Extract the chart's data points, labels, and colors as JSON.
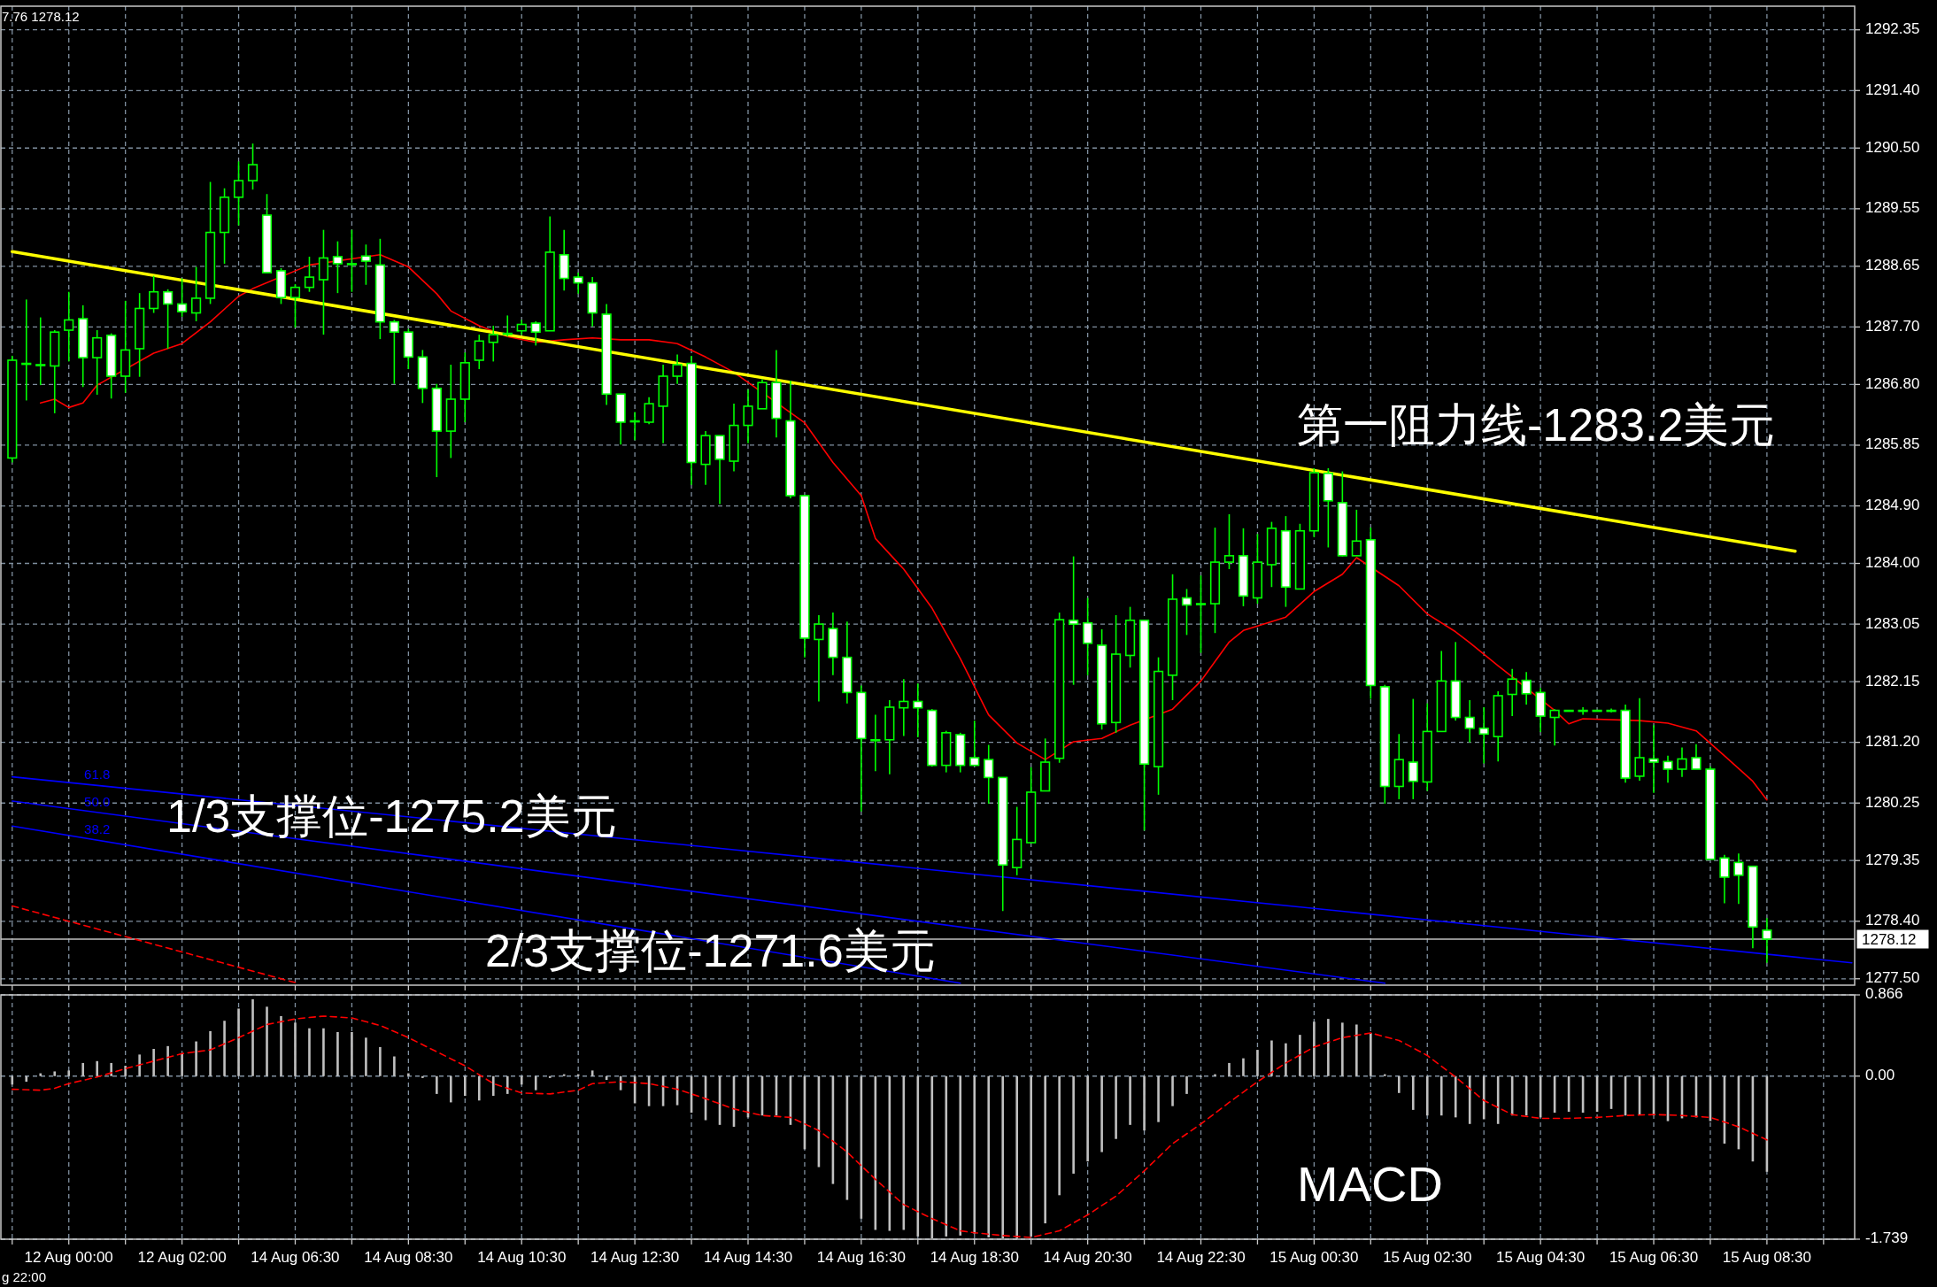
{
  "chart_data": [
    {
      "type": "candlestick",
      "color": "#00ff00",
      "categories": [
        null,
        null,
        null,
        null,
        null,
        null,
        null,
        null,
        null,
        null,
        null,
        null,
        null,
        null,
        null,
        null,
        null,
        null,
        null,
        null,
        null,
        null,
        null,
        null,
        null,
        null,
        null,
        null,
        null,
        null,
        null,
        null,
        null,
        null,
        null,
        null,
        null,
        null,
        null,
        null,
        null,
        null,
        null,
        null,
        null,
        null,
        null,
        null,
        null,
        null,
        null,
        null,
        null,
        null,
        null,
        null,
        null,
        null,
        null,
        null,
        null,
        null,
        null,
        null,
        null,
        null,
        null,
        null,
        null,
        null,
        null,
        null,
        null,
        null,
        null,
        null,
        null,
        null,
        null,
        null,
        null,
        null,
        null,
        null,
        null,
        null,
        null,
        null,
        null,
        null,
        null,
        null,
        null,
        null,
        null,
        null,
        null,
        null,
        null,
        null,
        null,
        null,
        null,
        null,
        null,
        null,
        null,
        null,
        null,
        null,
        null,
        null,
        null,
        null,
        null,
        null,
        null,
        null,
        null,
        null,
        null,
        null,
        null,
        null,
        null,
        null,
        null,
        null,
        null,
        null,
        null
      ],
      "ohlc": [
        [
          1285.65,
          1287.25,
          1285.58,
          1287.18
        ],
        [
          1287.13,
          1288.13,
          1286.55,
          1287.13
        ],
        [
          1287.11,
          1287.85,
          1286.79,
          1287.11
        ],
        [
          1287.09,
          1287.65,
          1286.35,
          1287.62
        ],
        [
          1287.65,
          1288.25,
          1287.16,
          1287.81
        ],
        [
          1287.83,
          1288.04,
          1286.76,
          1287.22
        ],
        [
          1287.22,
          1287.65,
          1286.64,
          1287.53
        ],
        [
          1287.57,
          1287.6,
          1286.58,
          1286.93
        ],
        [
          1286.93,
          1288.11,
          1286.67,
          1287.34
        ],
        [
          1287.36,
          1288.23,
          1286.92,
          1287.99
        ],
        [
          1287.99,
          1288.5,
          1287.92,
          1288.25
        ],
        [
          1288.25,
          1288.29,
          1287.36,
          1288.06
        ],
        [
          1288.06,
          1288.46,
          1287.86,
          1287.94
        ],
        [
          1287.92,
          1288.64,
          1287.79,
          1288.15
        ],
        [
          1288.15,
          1289.97,
          1288.06,
          1289.18
        ],
        [
          1289.18,
          1289.87,
          1288.69,
          1289.73
        ],
        [
          1289.73,
          1290.29,
          1289.29,
          1289.99
        ],
        [
          1289.99,
          1290.57,
          1289.85,
          1290.24
        ],
        [
          1289.45,
          1289.78,
          1288.55,
          1288.55
        ],
        [
          1288.58,
          1288.62,
          1288.06,
          1288.16
        ],
        [
          1288.16,
          1288.37,
          1287.69,
          1288.32
        ],
        [
          1288.32,
          1288.8,
          1288.25,
          1288.48
        ],
        [
          1288.44,
          1289.22,
          1287.58,
          1288.78
        ],
        [
          1288.8,
          1289.04,
          1288.23,
          1288.69
        ],
        [
          1288.69,
          1289.22,
          1288.25,
          1288.69
        ],
        [
          1288.81,
          1288.99,
          1288.36,
          1288.73
        ],
        [
          1288.67,
          1289.08,
          1287.51,
          1287.78
        ],
        [
          1287.78,
          1287.81,
          1286.81,
          1287.62
        ],
        [
          1287.62,
          1287.67,
          1287.04,
          1287.23
        ],
        [
          1287.23,
          1287.34,
          1286.51,
          1286.74
        ],
        [
          1286.74,
          1286.81,
          1285.35,
          1286.07
        ],
        [
          1286.07,
          1287.11,
          1285.65,
          1286.57
        ],
        [
          1286.57,
          1287.3,
          1286.21,
          1287.14
        ],
        [
          1287.18,
          1287.58,
          1287.04,
          1287.48
        ],
        [
          1287.46,
          1287.72,
          1287.16,
          1287.58
        ],
        [
          1287.6,
          1287.88,
          1287.55,
          1287.6
        ],
        [
          1287.64,
          1287.81,
          1287.58,
          1287.74
        ],
        [
          1287.76,
          1287.79,
          1287.41,
          1287.62
        ],
        [
          1287.64,
          1289.43,
          1287.64,
          1288.87
        ],
        [
          1288.83,
          1289.22,
          1288.27,
          1288.46
        ],
        [
          1288.48,
          1288.55,
          1288.22,
          1288.39
        ],
        [
          1288.39,
          1288.48,
          1287.71,
          1287.92
        ],
        [
          1287.9,
          1288.06,
          1286.48,
          1286.65
        ],
        [
          1286.65,
          1286.65,
          1285.86,
          1286.21
        ],
        [
          1286.23,
          1286.37,
          1285.93,
          1286.23
        ],
        [
          1286.21,
          1286.6,
          1286.18,
          1286.5
        ],
        [
          1286.46,
          1287.11,
          1285.88,
          1286.93
        ],
        [
          1286.93,
          1287.27,
          1286.81,
          1287.11
        ],
        [
          1287.13,
          1287.25,
          1285.23,
          1285.58
        ],
        [
          1285.55,
          1286.07,
          1285.23,
          1286.0
        ],
        [
          1286.0,
          1286.0,
          1284.93,
          1285.63
        ],
        [
          1285.6,
          1286.5,
          1285.44,
          1286.16
        ],
        [
          1286.16,
          1286.72,
          1285.88,
          1286.46
        ],
        [
          1286.42,
          1286.88,
          1286.42,
          1286.83
        ],
        [
          1286.83,
          1287.34,
          1285.97,
          1286.27
        ],
        [
          1286.23,
          1286.86,
          1285.02,
          1285.06
        ],
        [
          1285.06,
          1285.06,
          1282.53,
          1282.83
        ],
        [
          1282.81,
          1283.19,
          1281.84,
          1283.05
        ],
        [
          1282.98,
          1283.23,
          1282.25,
          1282.53
        ],
        [
          1282.53,
          1283.09,
          1281.81,
          1281.98
        ],
        [
          1281.98,
          1282.09,
          1280.12,
          1281.26
        ],
        [
          1281.24,
          1281.63,
          1280.75,
          1281.24
        ],
        [
          1281.24,
          1281.86,
          1280.7,
          1281.75
        ],
        [
          1281.74,
          1282.19,
          1281.3,
          1281.84
        ],
        [
          1281.84,
          1282.12,
          1281.28,
          1281.74
        ],
        [
          1281.7,
          1281.72,
          1280.82,
          1280.84
        ],
        [
          1280.84,
          1281.38,
          1280.73,
          1281.35
        ],
        [
          1281.32,
          1281.35,
          1280.73,
          1280.84
        ],
        [
          1280.96,
          1281.54,
          1280.84,
          1280.84
        ],
        [
          1280.93,
          1281.16,
          1280.24,
          1280.65
        ],
        [
          1280.65,
          1280.65,
          1278.56,
          1279.28
        ],
        [
          1279.24,
          1280.19,
          1279.12,
          1279.68
        ],
        [
          1279.63,
          1280.81,
          1279.63,
          1280.42
        ],
        [
          1280.44,
          1281.26,
          1280.44,
          1280.89
        ],
        [
          1280.95,
          1283.23,
          1280.88,
          1283.12
        ],
        [
          1283.11,
          1284.11,
          1282.1,
          1283.05
        ],
        [
          1283.07,
          1283.46,
          1282.25,
          1282.75
        ],
        [
          1282.72,
          1282.97,
          1281.4,
          1281.49
        ],
        [
          1281.51,
          1283.19,
          1281.35,
          1282.58
        ],
        [
          1282.56,
          1283.32,
          1282.37,
          1283.11
        ],
        [
          1283.11,
          1283.12,
          1279.82,
          1280.86
        ],
        [
          1280.82,
          1282.53,
          1280.38,
          1282.31
        ],
        [
          1282.25,
          1283.83,
          1281.86,
          1283.44
        ],
        [
          1283.46,
          1283.6,
          1282.88,
          1283.35
        ],
        [
          1283.37,
          1283.81,
          1282.6,
          1283.37
        ],
        [
          1283.37,
          1284.56,
          1282.91,
          1284.02
        ],
        [
          1284.02,
          1284.77,
          1283.91,
          1284.12
        ],
        [
          1284.12,
          1284.55,
          1283.33,
          1283.49
        ],
        [
          1283.46,
          1284.46,
          1283.37,
          1284.02
        ],
        [
          1283.98,
          1284.65,
          1283.63,
          1284.55
        ],
        [
          1284.51,
          1284.74,
          1283.32,
          1283.63
        ],
        [
          1283.6,
          1284.62,
          1283.6,
          1284.51
        ],
        [
          1284.51,
          1285.49,
          1284.41,
          1285.42
        ],
        [
          1285.41,
          1285.49,
          1284.25,
          1284.98
        ],
        [
          1284.95,
          1285.44,
          1284.11,
          1284.12
        ],
        [
          1284.12,
          1284.84,
          1284.12,
          1284.35
        ],
        [
          1284.37,
          1284.56,
          1281.88,
          1282.09
        ],
        [
          1282.07,
          1282.1,
          1280.24,
          1280.51
        ],
        [
          1280.51,
          1281.33,
          1280.31,
          1280.93
        ],
        [
          1280.89,
          1281.88,
          1280.31,
          1280.59
        ],
        [
          1280.58,
          1281.81,
          1280.44,
          1281.37
        ],
        [
          1281.37,
          1282.63,
          1281.37,
          1282.16
        ],
        [
          1282.16,
          1282.77,
          1281.54,
          1281.59
        ],
        [
          1281.59,
          1281.86,
          1281.2,
          1281.42
        ],
        [
          1281.42,
          1281.75,
          1280.87,
          1281.33
        ],
        [
          1281.29,
          1282.0,
          1280.9,
          1281.93
        ],
        [
          1281.95,
          1282.35,
          1281.61,
          1282.19
        ],
        [
          1282.17,
          1282.3,
          1281.79,
          1281.96
        ],
        [
          1281.98,
          1282.05,
          1281.36,
          1281.61
        ],
        [
          1281.59,
          1281.72,
          1281.15,
          1281.7
        ],
        [
          1281.7,
          1281.7,
          1281.7,
          1281.7
        ],
        [
          1281.7,
          1281.75,
          1281.63,
          1281.7
        ],
        [
          1281.7,
          1281.7,
          1281.7,
          1281.7
        ],
        [
          1281.7,
          1281.73,
          1281.67,
          1281.7
        ],
        [
          1281.7,
          1281.79,
          1280.57,
          1280.64
        ],
        [
          1280.67,
          1281.89,
          1280.6,
          1280.96
        ],
        [
          1280.94,
          1281.47,
          1280.41,
          1280.89
        ],
        [
          1280.9,
          1280.99,
          1280.57,
          1280.78
        ],
        [
          1280.78,
          1281.12,
          1280.66,
          1280.94
        ],
        [
          1280.96,
          1281.17,
          1280.78,
          1280.78
        ],
        [
          1280.78,
          1280.82,
          1279.37,
          1279.37
        ],
        [
          1279.39,
          1279.44,
          1278.68,
          1279.09
        ],
        [
          1279.32,
          1279.46,
          1278.67,
          1279.12
        ],
        [
          1279.26,
          1279.26,
          1277.98,
          1278.31
        ],
        [
          1278.26,
          1278.45,
          1277.75,
          1278.12
        ],
        null,
        null,
        null,
        null,
        null,
        null
      ],
      "series": [
        {
          "type": "line",
          "color": "#ff0000",
          "values": [
            null,
            null,
            1286.51,
            1286.57,
            1286.44,
            1286.51,
            1286.79,
            null,
            null,
            null,
            1287.29,
            null,
            1287.44,
            null,
            1287.78,
            null,
            1288.18,
            1288.3,
            null,
            null,
            null,
            1288.67,
            null,
            null,
            null,
            null,
            1288.83,
            null,
            1288.64,
            null,
            1288.22,
            1287.95,
            null,
            1287.72,
            null,
            1287.55,
            null,
            1287.46,
            null,
            1287.5,
            null,
            1287.53,
            null,
            1287.5,
            null,
            1287.5,
            null,
            1287.44,
            null,
            1287.23,
            null,
            1286.99,
            null,
            null,
            null,
            null,
            1286.2,
            null,
            1285.58,
            null,
            1285.06,
            1284.39,
            null,
            1283.91,
            null,
            1283.3,
            null,
            1282.51,
            null,
            1281.63,
            null,
            1281.19,
            null,
            1280.93,
            null,
            1281.21,
            null,
            1281.26,
            null,
            1281.47,
            null,
            null,
            1281.72,
            null,
            1282.16,
            null,
            1282.77,
            1282.95,
            null,
            1283.09,
            1283.16,
            null,
            1283.56,
            null,
            1283.83,
            1284.09,
            null,
            null,
            1283.65,
            null,
            1283.21,
            null,
            1282.93,
            1282.76,
            null,
            1282.4,
            null,
            null,
            null,
            1281.7,
            1281.49,
            1281.57,
            null,
            null,
            null,
            1281.54,
            null,
            1281.5,
            null,
            1281.38,
            null,
            1280.99,
            null,
            1280.59,
            1280.3,
            null,
            null,
            null,
            null,
            null,
            null
          ]
        },
        {
          "type": "line",
          "color": "#ffff00",
          "values": [
            1288.88,
            null,
            null,
            null,
            null,
            null,
            null,
            null,
            null,
            null,
            null,
            null,
            null,
            null,
            null,
            null,
            null,
            null,
            null,
            null,
            null,
            null,
            null,
            null,
            null,
            null,
            null,
            null,
            null,
            null,
            null,
            null,
            null,
            null,
            null,
            null,
            null,
            null,
            null,
            null,
            null,
            null,
            null,
            null,
            null,
            null,
            null,
            null,
            null,
            null,
            null,
            null,
            null,
            null,
            null,
            null,
            null,
            null,
            null,
            null,
            null,
            null,
            null,
            null,
            null,
            null,
            null,
            null,
            null,
            null,
            null,
            null,
            null,
            null,
            null,
            null,
            null,
            null,
            null,
            null,
            null,
            null,
            null,
            null,
            null,
            null,
            null,
            null,
            null,
            null,
            null,
            null,
            null,
            null,
            null,
            null,
            null,
            null,
            null,
            null,
            null,
            null,
            null,
            null,
            null,
            null,
            null,
            null,
            null,
            null,
            null,
            null,
            null,
            null,
            null,
            null,
            null,
            null,
            null,
            null,
            null,
            null,
            null,
            null,
            null,
            null,
            1284.19,
            null,
            null,
            null,
            null
          ]
        },
        {
          "type": "line",
          "name": "61.8",
          "color": "#0000ff",
          "values": [
            1280.66,
            null,
            null,
            null,
            null,
            null,
            null,
            null,
            null,
            null,
            null,
            null,
            null,
            null,
            null,
            null,
            null,
            null,
            null,
            null,
            null,
            null,
            null,
            null,
            null,
            null,
            null,
            null,
            null,
            null,
            null,
            null,
            null,
            null,
            null,
            null,
            null,
            null,
            null,
            null,
            null,
            null,
            null,
            null,
            null,
            null,
            null,
            null,
            null,
            null,
            null,
            null,
            null,
            null,
            null,
            null,
            null,
            null,
            null,
            null,
            null,
            null,
            null,
            null,
            null,
            null,
            null,
            null,
            null,
            null,
            null,
            null,
            null,
            null,
            null,
            null,
            null,
            null,
            null,
            null,
            null,
            null,
            null,
            null,
            null,
            null,
            null,
            null,
            null,
            null,
            null,
            null,
            null,
            null,
            null,
            null,
            null,
            null,
            null,
            null,
            null,
            null,
            null,
            null,
            null,
            null,
            null,
            null,
            null,
            null,
            null,
            null,
            null,
            null,
            null,
            null,
            null,
            null,
            null,
            null,
            null,
            null,
            null,
            null,
            null,
            null,
            null,
            null,
            null,
            null,
            1277.75
          ]
        },
        {
          "type": "line",
          "name": "50.0",
          "color": "#0000ff",
          "values": [
            1280.28,
            null,
            null,
            null,
            null,
            null,
            null,
            null,
            null,
            null,
            null,
            null,
            null,
            null,
            null,
            null,
            null,
            null,
            null,
            null,
            null,
            null,
            null,
            null,
            null,
            null,
            null,
            null,
            null,
            null,
            null,
            null,
            null,
            null,
            null,
            null,
            null,
            null,
            null,
            null,
            null,
            null,
            null,
            null,
            null,
            null,
            null,
            null,
            null,
            null,
            null,
            null,
            null,
            null,
            null,
            null,
            null,
            null,
            null,
            null,
            null,
            null,
            null,
            null,
            null,
            null,
            null,
            null,
            null,
            null,
            null,
            null,
            null,
            null,
            null,
            null,
            null,
            null,
            null,
            null,
            null,
            null,
            null,
            null,
            null,
            null,
            null,
            null,
            null,
            null,
            null,
            null,
            null,
            null,
            null,
            null,
            null,
            1277.43,
            null,
            null,
            null,
            null,
            null,
            null,
            null,
            null,
            null,
            null,
            null,
            null,
            null,
            null,
            null,
            null,
            null,
            null,
            null,
            null,
            null,
            null,
            null,
            null,
            null,
            null,
            null,
            null,
            null,
            null,
            null,
            null,
            null
          ]
        },
        {
          "type": "line",
          "name": "38.2",
          "color": "#0000ff",
          "values": [
            1279.89,
            null,
            null,
            null,
            null,
            null,
            null,
            null,
            null,
            null,
            null,
            null,
            null,
            null,
            null,
            null,
            null,
            null,
            null,
            null,
            null,
            null,
            null,
            null,
            null,
            null,
            null,
            null,
            null,
            null,
            null,
            null,
            null,
            null,
            null,
            null,
            null,
            null,
            null,
            null,
            null,
            null,
            null,
            null,
            null,
            null,
            null,
            null,
            null,
            null,
            null,
            null,
            null,
            null,
            null,
            null,
            null,
            null,
            null,
            null,
            null,
            null,
            null,
            null,
            null,
            null,
            null,
            1277.43,
            null,
            null,
            null,
            null,
            null,
            null,
            null,
            null,
            null,
            null,
            null,
            null,
            null,
            null,
            null,
            null,
            null,
            null,
            null,
            null,
            null,
            null,
            null,
            null,
            null,
            null,
            null,
            null,
            null,
            null,
            null,
            null,
            null,
            null,
            null,
            null,
            null,
            null,
            null,
            null,
            null,
            null,
            null,
            null,
            null,
            null,
            null,
            null,
            null,
            null,
            null,
            null,
            null,
            null,
            null,
            null,
            null,
            null,
            null,
            null,
            null,
            null,
            null
          ]
        },
        {
          "type": "line",
          "line_style": "dashed",
          "color": "#ff0000",
          "values": [
            1278.64,
            null,
            null,
            null,
            null,
            null,
            null,
            null,
            null,
            null,
            null,
            null,
            null,
            null,
            null,
            null,
            null,
            null,
            null,
            null,
            1277.44,
            null,
            null,
            null,
            null,
            null,
            null,
            null,
            null,
            null,
            null,
            null,
            null,
            null,
            null,
            null,
            null,
            null,
            null,
            null,
            null,
            null,
            null,
            null,
            null,
            null,
            null,
            null,
            null,
            null,
            null,
            null,
            null,
            null,
            null,
            null,
            null,
            null,
            null,
            null,
            null,
            null,
            null,
            null,
            null,
            null,
            null,
            null,
            null,
            null,
            null,
            null,
            null,
            null,
            null,
            null,
            null,
            null,
            null,
            null,
            null,
            null,
            null,
            null,
            null,
            null,
            null,
            null,
            null,
            null,
            null,
            null,
            null,
            null,
            null,
            null,
            null,
            null,
            null,
            null,
            null,
            null,
            null,
            null,
            null,
            null,
            null,
            null,
            null,
            null,
            null,
            null,
            null,
            null,
            null,
            null,
            null,
            null,
            null,
            null,
            null,
            null,
            null,
            null,
            null,
            null,
            null,
            null,
            null,
            null,
            null
          ]
        }
      ],
      "ylim": [
        1277.4,
        1292.72
      ],
      "yticks": [
        {
          "value": 1277.5,
          "label": "1277.50"
        },
        {
          "value": 1278.4,
          "label": "1278.40"
        },
        1279.35,
        1280.25,
        {
          "value": 1281.2,
          "label": "1281.20"
        },
        1282.15,
        1283.05,
        {
          "value": 1284,
          "label": "1284.00"
        },
        {
          "value": 1284.9,
          "label": "1284.90"
        },
        1285.85,
        {
          "value": 1286.8,
          "label": "1286.80"
        },
        {
          "value": 1287.7,
          "label": "1287.70"
        },
        1288.65,
        1289.55,
        {
          "value": 1290.5,
          "label": "1290.50"
        },
        {
          "value": 1291.4,
          "label": "1291.40"
        },
        1292.35
      ],
      "ref_lines": [
        {
          "axis": "y",
          "value": 1278.12,
          "label": "1278.12",
          "color": "#c0c0c0"
        }
      ],
      "grid": true,
      "tick_labels": "y",
      "annotations": [
        "第一阻力线-1283.2美元",
        "1/3支撑位-1275.2美元",
        "2/3支撑位-1271.6美元",
        "7.76 1278.12"
      ]
    },
    {
      "type": "bar",
      "categories": [
        null,
        null,
        null,
        null,
        "12 Aug 00:00",
        null,
        null,
        null,
        null,
        null,
        null,
        null,
        "12 Aug 02:00",
        null,
        null,
        null,
        null,
        null,
        null,
        null,
        "14 Aug 06:30",
        null,
        null,
        null,
        null,
        null,
        null,
        null,
        "14 Aug 08:30",
        null,
        null,
        null,
        null,
        null,
        null,
        null,
        "14 Aug 10:30",
        null,
        null,
        null,
        null,
        null,
        null,
        null,
        "14 Aug 12:30",
        null,
        null,
        null,
        null,
        null,
        null,
        null,
        "14 Aug 14:30",
        null,
        null,
        null,
        null,
        null,
        null,
        null,
        "14 Aug 16:30",
        null,
        null,
        null,
        null,
        null,
        null,
        null,
        "14 Aug 18:30",
        null,
        null,
        null,
        null,
        null,
        null,
        null,
        "14 Aug 20:30",
        null,
        null,
        null,
        null,
        null,
        null,
        null,
        "14 Aug 22:30",
        null,
        null,
        null,
        null,
        null,
        null,
        null,
        "15 Aug 00:30",
        null,
        null,
        null,
        null,
        null,
        null,
        null,
        "15 Aug 02:30",
        null,
        null,
        null,
        null,
        null,
        null,
        null,
        "15 Aug 04:30",
        null,
        null,
        null,
        null,
        null,
        null,
        null,
        "15 Aug 06:30",
        null,
        null,
        null,
        null,
        null,
        null,
        null,
        "15 Aug 08:30",
        null,
        null,
        null,
        null,
        null,
        null
      ],
      "series": [
        {
          "type": "bar",
          "color": "#c0c0c0",
          "values": [
            -0.09,
            -0.06,
            0.03,
            0.05,
            0.06,
            0.14,
            0.16,
            0.14,
            0.11,
            0.23,
            0.29,
            0.32,
            0.24,
            0.37,
            0.48,
            0.59,
            0.72,
            0.82,
            0.74,
            0.64,
            0.57,
            0.51,
            0.51,
            0.47,
            0.47,
            0.41,
            0.31,
            0.21,
            0.03,
            -0.02,
            -0.19,
            -0.28,
            -0.21,
            -0.26,
            -0.21,
            -0.19,
            -0.09,
            -0.15,
            -0.02,
            0.02,
            0.02,
            0.06,
            -0.04,
            -0.15,
            -0.29,
            -0.32,
            -0.32,
            -0.31,
            -0.39,
            -0.47,
            -0.52,
            -0.54,
            -0.44,
            -0.42,
            -0.42,
            -0.52,
            -0.78,
            -0.97,
            -1.15,
            -1.32,
            -1.52,
            -1.64,
            -1.65,
            -1.64,
            -1.71,
            -1.73,
            -1.71,
            -1.7,
            -1.68,
            -1.72,
            -1.73,
            -1.73,
            -1.71,
            -1.57,
            -1.27,
            -1.04,
            -0.91,
            -0.81,
            -0.67,
            -0.52,
            -0.58,
            -0.49,
            -0.32,
            -0.19,
            -0.01,
            0.02,
            0.14,
            0.19,
            0.28,
            0.38,
            0.35,
            0.44,
            0.58,
            0.61,
            0.57,
            0.55,
            0.46,
            0.02,
            -0.18,
            -0.36,
            -0.42,
            -0.42,
            -0.44,
            -0.51,
            -0.46,
            -0.51,
            -0.42,
            -0.42,
            -0.44,
            -0.39,
            -0.38,
            -0.39,
            -0.38,
            -0.35,
            -0.42,
            -0.41,
            -0.42,
            -0.48,
            -0.45,
            -0.44,
            -0.48,
            -0.72,
            -0.78,
            -0.91,
            -1.02,
            null,
            null,
            null,
            null,
            null,
            null
          ]
        },
        {
          "type": "line",
          "line_style": "dashed",
          "color": "#ff0000",
          "values": [
            -0.14,
            null,
            -0.15,
            -0.13,
            -0.08,
            null,
            -0.01,
            null,
            0.08,
            null,
            0.16,
            null,
            0.24,
            null,
            0.28,
            null,
            0.41,
            null,
            0.55,
            null,
            0.61,
            null,
            0.64,
            null,
            0.62,
            null,
            0.54,
            null,
            0.41,
            null,
            0.26,
            null,
            0.11,
            null,
            -0.08,
            null,
            -0.18,
            null,
            -0.19,
            null,
            -0.15,
            -0.08,
            null,
            -0.06,
            null,
            -0.08,
            null,
            -0.14,
            null,
            -0.24,
            null,
            -0.35,
            null,
            -0.42,
            null,
            -0.44,
            null,
            -0.58,
            null,
            -0.81,
            null,
            -1.1,
            null,
            -1.37,
            null,
            -1.52,
            null,
            -1.65,
            -1.67,
            null,
            -1.7,
            null,
            -1.72,
            null,
            -1.65,
            null,
            -1.48,
            null,
            -1.28,
            null,
            -1.01,
            null,
            -0.72,
            null,
            -0.51,
            null,
            -0.28,
            null,
            -0.06,
            null,
            0.14,
            null,
            0.31,
            null,
            0.41,
            null,
            0.46,
            null,
            0.38,
            null,
            0.22,
            null,
            -0.01,
            null,
            -0.26,
            null,
            -0.41,
            null,
            -0.45,
            null,
            -0.45,
            null,
            -0.44,
            null,
            -0.42,
            null,
            -0.41,
            null,
            -0.42,
            null,
            -0.44,
            null,
            -0.54,
            null,
            -0.68,
            null,
            null,
            null,
            null,
            null,
            null
          ]
        }
      ],
      "ylim": [
        -1.739,
        0.866
      ],
      "yticks": [
        0.866,
        {
          "value": 0,
          "label": "0.00"
        },
        -1.739
      ],
      "grid": true,
      "annotations": [
        "MACD",
        "g 22:00"
      ]
    }
  ]
}
